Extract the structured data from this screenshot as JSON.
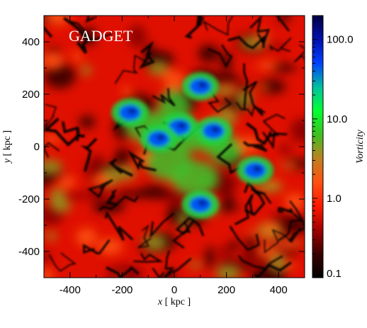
{
  "chart_data": {
    "type": "heatmap",
    "panel_label": "GADGET",
    "x_axis": {
      "label_var": "x",
      "label_unit": " [ kpc ]",
      "range": [
        -500,
        500
      ],
      "ticks": [
        -400,
        -200,
        0,
        200,
        400
      ],
      "tick_labels": [
        "-400",
        "-200",
        "0",
        "200",
        "400"
      ]
    },
    "y_axis": {
      "label_var": "y",
      "label_unit": " [ kpc ]",
      "range": [
        -500,
        500
      ],
      "ticks": [
        -400,
        -200,
        0,
        200,
        400
      ],
      "tick_labels": [
        "-400",
        "-200",
        "0",
        "200",
        "400"
      ]
    },
    "colorbar": {
      "label": "Vorticity",
      "scale": "log",
      "range": [
        0.1,
        200
      ],
      "ticks": [
        0.1,
        1.0,
        10.0,
        100.0
      ],
      "tick_labels": [
        "0.1",
        "1.0",
        "10.0",
        "100.0"
      ],
      "colors": [
        "#000000",
        "#3a0000",
        "#a00000",
        "#ff1800",
        "#ff5010",
        "#c08020",
        "#40c020",
        "#00ff30",
        "#00c0a0",
        "#0040ff",
        "#0010b0",
        "#000040"
      ]
    },
    "high_vorticity_regions_kpc": [
      {
        "x": -170,
        "y": 130
      },
      {
        "x": 20,
        "y": 75
      },
      {
        "x": 100,
        "y": 230
      },
      {
        "x": 150,
        "y": 60
      },
      {
        "x": 310,
        "y": -90
      },
      {
        "x": 100,
        "y": -220
      },
      {
        "x": -60,
        "y": 30
      }
    ]
  }
}
